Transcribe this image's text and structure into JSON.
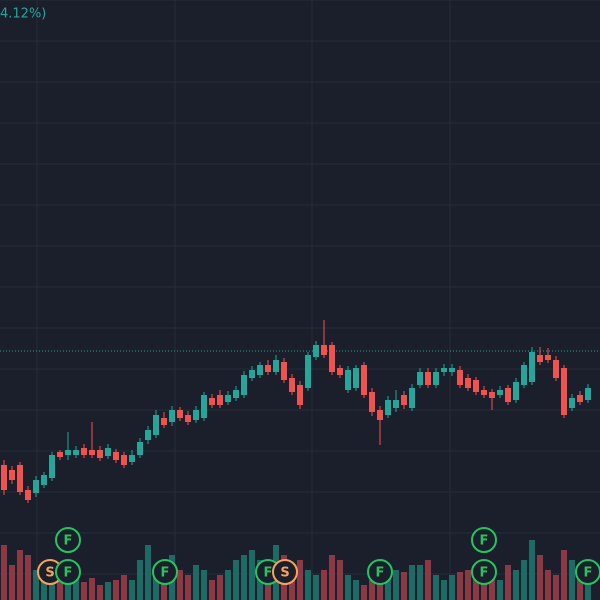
{
  "header": {
    "change_text": "4.12%)"
  },
  "chart_data": {
    "type": "candlestick",
    "up_color": "#26a69a",
    "down_color": "#ef5350",
    "ylim": [
      0,
      600
    ],
    "y2lim": [
      0,
      600
    ],
    "price_line": 249,
    "open": [
      135,
      130,
      135,
      110,
      107,
      115,
      122,
      148,
      145,
      145,
      152,
      150,
      150,
      144,
      148,
      145,
      138,
      145,
      160,
      165,
      182,
      178,
      190,
      185,
      180,
      182,
      202,
      205,
      198,
      202,
      205,
      222,
      225,
      235,
      228,
      238,
      222,
      215,
      212,
      243,
      255,
      255,
      232,
      210,
      212,
      235,
      208,
      190,
      185,
      192,
      205,
      192,
      215,
      228,
      215,
      228,
      228,
      230,
      222,
      220,
      210,
      208,
      205,
      212,
      200,
      215,
      218,
      245,
      245,
      240,
      232,
      192,
      205,
      200
    ],
    "high": [
      140,
      134,
      138,
      114,
      124,
      128,
      148,
      150,
      168,
      154,
      156,
      178,
      154,
      156,
      151,
      148,
      150,
      162,
      174,
      190,
      188,
      194,
      193,
      189,
      194,
      208,
      206,
      210,
      209,
      214,
      229,
      234,
      238,
      240,
      245,
      242,
      226,
      219,
      248,
      259,
      280,
      258,
      235,
      234,
      235,
      238,
      212,
      194,
      204,
      210,
      209,
      216,
      232,
      232,
      232,
      236,
      236,
      234,
      226,
      223,
      214,
      211,
      214,
      215,
      222,
      238,
      253,
      253,
      252,
      244,
      235,
      206,
      209,
      216
    ],
    "low": [
      105,
      116,
      105,
      97,
      103,
      112,
      119,
      140,
      140,
      142,
      142,
      142,
      139,
      141,
      137,
      132,
      135,
      142,
      156,
      162,
      172,
      174,
      179,
      175,
      177,
      179,
      192,
      192,
      195,
      199,
      202,
      219,
      222,
      225,
      225,
      217,
      205,
      191,
      209,
      240,
      242,
      225,
      222,
      207,
      209,
      202,
      184,
      155,
      182,
      188,
      191,
      189,
      212,
      212,
      212,
      224,
      224,
      212,
      209,
      205,
      202,
      190,
      202,
      195,
      197,
      212,
      215,
      235,
      237,
      219,
      182,
      189,
      195,
      197
    ],
    "close": [
      110,
      120,
      108,
      100,
      120,
      125,
      145,
      143,
      150,
      150,
      145,
      145,
      142,
      152,
      140,
      135,
      145,
      158,
      170,
      185,
      175,
      190,
      182,
      178,
      190,
      205,
      195,
      195,
      205,
      210,
      225,
      230,
      235,
      228,
      240,
      220,
      208,
      195,
      245,
      255,
      245,
      228,
      225,
      230,
      232,
      205,
      188,
      180,
      200,
      200,
      195,
      212,
      228,
      215,
      228,
      232,
      232,
      215,
      212,
      208,
      205,
      202,
      210,
      198,
      218,
      235,
      248,
      238,
      240,
      222,
      185,
      202,
      198,
      212
    ],
    "volume": [
      55,
      35,
      50,
      45,
      30,
      28,
      35,
      20,
      30,
      25,
      18,
      22,
      15,
      18,
      20,
      25,
      20,
      40,
      55,
      30,
      25,
      45,
      30,
      25,
      35,
      30,
      20,
      25,
      30,
      40,
      45,
      50,
      40,
      35,
      55,
      45,
      30,
      40,
      30,
      25,
      30,
      45,
      40,
      25,
      20,
      15,
      20,
      30,
      25,
      30,
      28,
      35,
      35,
      40,
      25,
      20,
      25,
      28,
      30,
      35,
      30,
      25,
      20,
      35,
      30,
      40,
      60,
      45,
      30,
      25,
      50,
      40,
      30,
      28
    ],
    "events": [
      {
        "label": "S"
      },
      {
        "label": "F"
      },
      {
        "label": "F"
      },
      {
        "label": "F"
      },
      {
        "label": "F"
      },
      {
        "label": "S"
      },
      {
        "label": "F"
      },
      {
        "label": "F"
      },
      {
        "label": "F"
      },
      {
        "label": "F"
      }
    ]
  }
}
